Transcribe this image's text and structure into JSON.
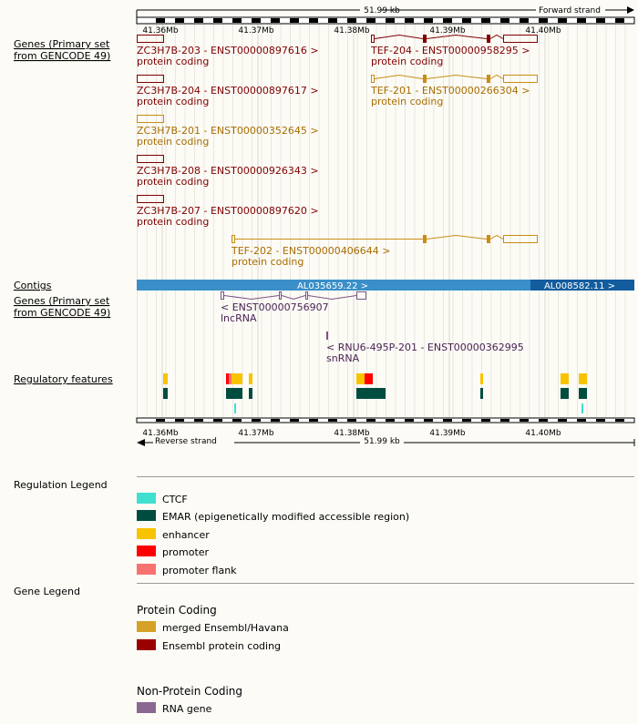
{
  "scale_bar": {
    "length_label": "51.99 kb",
    "forward_label": "Forward strand",
    "reverse_label": "Reverse strand",
    "ticks": [
      "41.36Mb",
      "41.37Mb",
      "41.38Mb",
      "41.39Mb",
      "41.40Mb"
    ]
  },
  "tracks": {
    "genes_label_line1": "Genes (Primary set",
    "genes_label_line2": "from GENCODE 49)",
    "contigs_label": "Contigs",
    "regulatory_label": "Regulatory features"
  },
  "forward_genes": [
    {
      "name": "ZC3H7B-203 - ENST00000897616 >",
      "biotype": "protein coding",
      "color": "#800000"
    },
    {
      "name": "TEF-204 - ENST00000958295 >",
      "biotype": "protein coding",
      "color": "#800000"
    },
    {
      "name": "ZC3H7B-204 - ENST00000897617 >",
      "biotype": "protein coding",
      "color": "#800000"
    },
    {
      "name": "TEF-201 - ENST00000266304 >",
      "biotype": "protein coding",
      "color": "#a86d00"
    },
    {
      "name": "ZC3H7B-201 - ENST00000352645 >",
      "biotype": "protein coding",
      "color": "#a86d00"
    },
    {
      "name": "ZC3H7B-208 - ENST00000926343 >",
      "biotype": "protein coding",
      "color": "#800000"
    },
    {
      "name": "ZC3H7B-207 - ENST00000897620 >",
      "biotype": "protein coding",
      "color": "#800000"
    },
    {
      "name": "TEF-202 - ENST00000406644 >",
      "biotype": "protein coding",
      "color": "#a86d00"
    }
  ],
  "contigs": [
    {
      "name": "AL035659.22 >",
      "color": "#3a8fc8"
    },
    {
      "name": "AL008582.11 >",
      "color": "#135c9e"
    }
  ],
  "reverse_genes": [
    {
      "name": "< ENST00000756907",
      "biotype": "lncRNA",
      "color": "#4a2355"
    },
    {
      "name": "< RNU6-495P-201 - ENST00000362995",
      "biotype": "snRNA",
      "color": "#4a2355"
    }
  ],
  "regulation_legend": {
    "title": "Regulation Legend",
    "items": [
      {
        "label": "CTCF",
        "color": "#40e0d0"
      },
      {
        "label": "EMAR (epigenetically modified accessible region)",
        "color": "#004d40"
      },
      {
        "label": "enhancer",
        "color": "#f8c300"
      },
      {
        "label": "promoter",
        "color": "#ff0000"
      },
      {
        "label": "promoter flank",
        "color": "#f87171"
      }
    ]
  },
  "gene_legend": {
    "title": "Gene Legend",
    "protein_coding_title": "Protein Coding",
    "protein_coding_items": [
      {
        "label": "merged Ensembl/Havana",
        "color": "#d5a126"
      },
      {
        "label": "Ensembl protein coding",
        "color": "#9b0000"
      }
    ],
    "non_protein_title": "Non-Protein Coding",
    "non_protein_items": [
      {
        "label": "RNA gene",
        "color": "#8b6891"
      }
    ]
  }
}
